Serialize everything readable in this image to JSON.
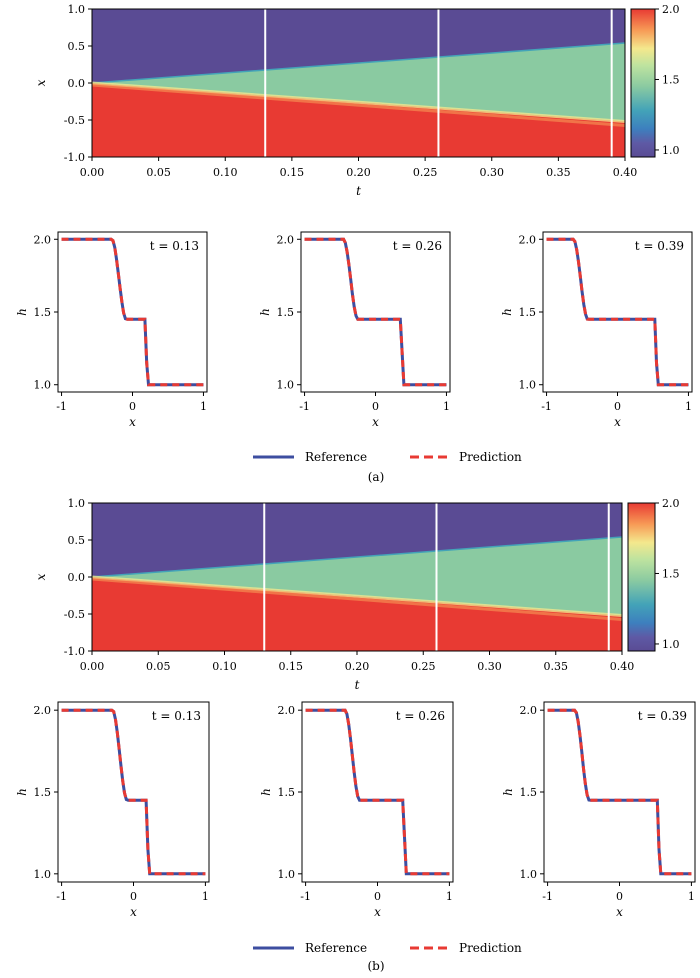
{
  "chart_data": [
    {
      "id": "a",
      "caption": "(a)",
      "heatmap": {
        "type": "heatmap",
        "xlabel": "t",
        "ylabel": "x",
        "xlim": [
          0,
          0.4
        ],
        "ylim": [
          -1,
          1
        ],
        "xticks": [
          "0.00",
          "0.05",
          "0.10",
          "0.15",
          "0.20",
          "0.25",
          "0.30",
          "0.35",
          "0.40"
        ],
        "yticks": [
          "1.0",
          "0.5",
          "0.0",
          "-0.5",
          "-1.0"
        ],
        "colorbar": {
          "range": [
            0.95,
            2.0
          ],
          "ticks": [
            "2.0",
            "1.5",
            "1.0"
          ]
        },
        "marker_lines_t": [
          0.13,
          0.26,
          0.39
        ],
        "colors": {
          "low": "#5a4b94",
          "mid": "#8acaa1",
          "high": "#e83a33"
        }
      },
      "profiles": [
        {
          "label": "t = 0.13",
          "t": 0.13,
          "x_left": -0.17,
          "x_right": 0.19,
          "h_mid": 1.45
        },
        {
          "label": "t = 0.26",
          "t": 0.26,
          "x_left": -0.33,
          "x_right": 0.37,
          "h_mid": 1.45
        },
        {
          "label": "t = 0.39",
          "t": 0.39,
          "x_left": -0.5,
          "x_right": 0.54,
          "h_mid": 1.45
        }
      ],
      "profile_axes": {
        "xlabel": "x",
        "ylabel": "h",
        "xticks": [
          "-1",
          "0",
          "1"
        ],
        "yticks": [
          "2.0",
          "1.5",
          "1.0"
        ],
        "xlim": [
          -1.05,
          1.05
        ],
        "ylim": [
          0.95,
          2.05
        ]
      },
      "legend": [
        {
          "name": "Reference",
          "color": "#3d4ea0"
        },
        {
          "name": "Prediction",
          "color": "#e83a33"
        }
      ]
    },
    {
      "id": "b",
      "caption": "(b)",
      "heatmap": {
        "type": "heatmap",
        "xlabel": "t",
        "ylabel": "x",
        "xlim": [
          0,
          0.4
        ],
        "ylim": [
          -1,
          1
        ],
        "xticks": [
          "0.00",
          "0.05",
          "0.10",
          "0.15",
          "0.20",
          "0.25",
          "0.30",
          "0.35",
          "0.40"
        ],
        "yticks": [
          "1.0",
          "0.5",
          "0.0",
          "-0.5",
          "-1.0"
        ],
        "colorbar": {
          "range": [
            0.95,
            2.0
          ],
          "ticks": [
            "2.0",
            "1.5",
            "1.0"
          ]
        },
        "marker_lines_t": [
          0.13,
          0.26,
          0.39
        ],
        "colors": {
          "low": "#5a4b94",
          "mid": "#8acaa1",
          "high": "#e83a33"
        }
      },
      "profiles": [
        {
          "label": "t = 0.13",
          "t": 0.13,
          "x_left": -0.17,
          "x_right": 0.19,
          "h_mid": 1.45
        },
        {
          "label": "t = 0.26",
          "t": 0.26,
          "x_left": -0.33,
          "x_right": 0.37,
          "h_mid": 1.45
        },
        {
          "label": "t = 0.39",
          "t": 0.39,
          "x_left": -0.5,
          "x_right": 0.54,
          "h_mid": 1.45
        }
      ],
      "profile_axes": {
        "xlabel": "x",
        "ylabel": "h",
        "xticks": [
          "-1",
          "0",
          "1"
        ],
        "yticks": [
          "2.0",
          "1.5",
          "1.0"
        ],
        "xlim": [
          -1.05,
          1.05
        ],
        "ylim": [
          0.95,
          2.05
        ]
      },
      "legend": [
        {
          "name": "Reference",
          "color": "#3d4ea0"
        },
        {
          "name": "Prediction",
          "color": "#e83a33"
        }
      ]
    }
  ]
}
